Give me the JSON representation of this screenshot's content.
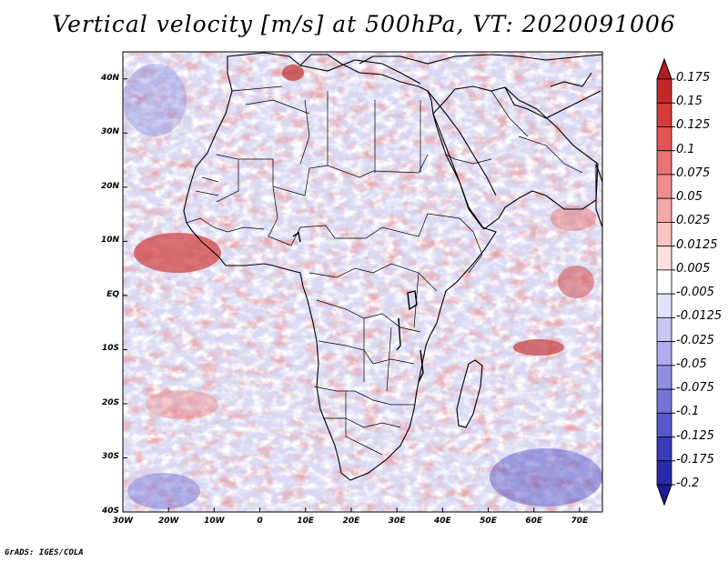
{
  "title": "Vertical velocity [m/s] at 500hPa, VT: 2020091006",
  "footer": "GrADS: IGES/COLA",
  "map": {
    "projection": "latlon",
    "lon_range": [
      -30,
      75
    ],
    "lat_range": [
      -40,
      45
    ],
    "lat_ticks": [
      {
        "value": 40,
        "label": "40N"
      },
      {
        "value": 30,
        "label": "30N"
      },
      {
        "value": 20,
        "label": "20N"
      },
      {
        "value": 10,
        "label": "10N"
      },
      {
        "value": 0,
        "label": "EQ"
      },
      {
        "value": -10,
        "label": "10S"
      },
      {
        "value": -20,
        "label": "20S"
      },
      {
        "value": -30,
        "label": "30S"
      },
      {
        "value": -40,
        "label": "40S"
      }
    ],
    "lon_ticks": [
      {
        "value": -30,
        "label": "30W"
      },
      {
        "value": -20,
        "label": "20W"
      },
      {
        "value": -10,
        "label": "10W"
      },
      {
        "value": 0,
        "label": "0"
      },
      {
        "value": 10,
        "label": "10E"
      },
      {
        "value": 20,
        "label": "20E"
      },
      {
        "value": 30,
        "label": "30E"
      },
      {
        "value": 40,
        "label": "40E"
      },
      {
        "value": 50,
        "label": "50E"
      },
      {
        "value": 60,
        "label": "60E"
      },
      {
        "value": 70,
        "label": "70E"
      }
    ]
  },
  "colorbar": {
    "labels": [
      "0.175",
      "0.15",
      "0.125",
      "0.1",
      "0.075",
      "0.05",
      "0.025",
      "0.0125",
      "0.005",
      "-0.005",
      "-0.0125",
      "-0.025",
      "-0.05",
      "-0.075",
      "-0.1",
      "-0.125",
      "-0.175",
      "-0.2"
    ],
    "colors": [
      "#b01d1d",
      "#c22a2a",
      "#d43c3c",
      "#e25555",
      "#ea7272",
      "#f08e8e",
      "#f4a8a8",
      "#f8c4c4",
      "#fce0e0",
      "#ffffff",
      "#e2e2f8",
      "#c8c8f2",
      "#adadec",
      "#9090e2",
      "#7474d8",
      "#5858cc",
      "#3a3abd",
      "#2a2aa8",
      "#1c1c94"
    ]
  }
}
